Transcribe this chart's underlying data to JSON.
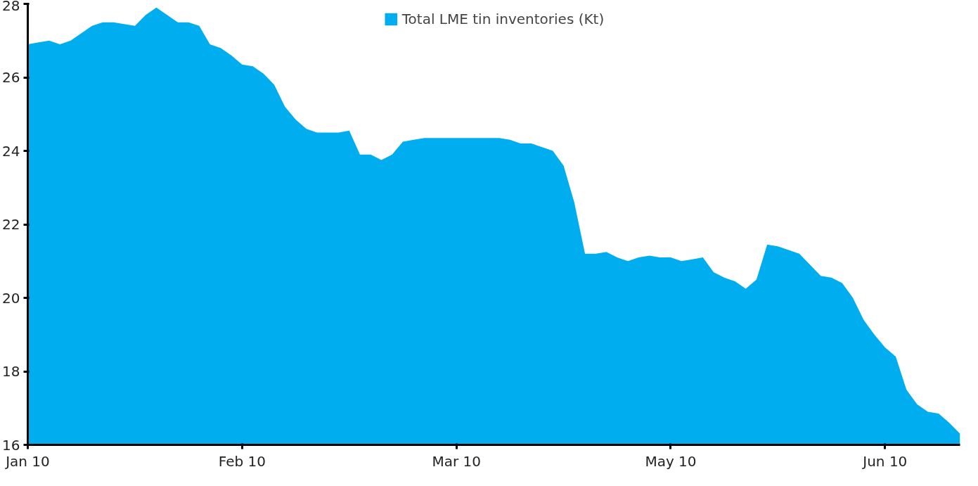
{
  "chart_data": {
    "type": "area",
    "ylim": [
      16,
      28
    ],
    "yticks": [
      16,
      18,
      20,
      22,
      24,
      26,
      28
    ],
    "grid": false,
    "legend": "top",
    "categories": [
      "Jan 10",
      null,
      null,
      null,
      null,
      null,
      null,
      null,
      null,
      null,
      null,
      null,
      null,
      null,
      null,
      null,
      null,
      null,
      null,
      null,
      "Feb 10",
      null,
      null,
      null,
      null,
      null,
      null,
      null,
      null,
      null,
      null,
      null,
      null,
      null,
      null,
      null,
      null,
      null,
      null,
      null,
      "Mar 10",
      null,
      null,
      null,
      null,
      null,
      null,
      null,
      null,
      null,
      null,
      null,
      null,
      null,
      null,
      null,
      null,
      null,
      null,
      null,
      "May 10",
      null,
      null,
      null,
      null,
      null,
      null,
      null,
      null,
      null,
      null,
      null,
      null,
      null,
      null,
      null,
      null,
      null,
      null,
      null,
      "Jun 10",
      null,
      null,
      null,
      null,
      null,
      null,
      null
    ],
    "series": [
      {
        "name": "Total LME tin inventories (Kt)",
        "color": "#00aeef",
        "values": [
          26.9,
          26.95,
          27.0,
          26.9,
          27.0,
          27.2,
          27.4,
          27.5,
          27.5,
          27.45,
          27.4,
          27.7,
          27.9,
          27.7,
          27.5,
          27.5,
          27.4,
          26.9,
          26.8,
          26.6,
          26.35,
          26.3,
          26.1,
          25.8,
          25.2,
          24.85,
          24.6,
          24.5,
          24.5,
          24.5,
          24.55,
          23.9,
          23.9,
          23.75,
          23.9,
          24.25,
          24.3,
          24.35,
          24.35,
          24.35,
          24.35,
          24.35,
          24.35,
          24.35,
          24.35,
          24.3,
          24.2,
          24.2,
          24.1,
          24.0,
          23.6,
          22.6,
          21.2,
          21.2,
          21.25,
          21.1,
          21.0,
          21.1,
          21.15,
          21.1,
          21.1,
          21.0,
          21.05,
          21.1,
          20.7,
          20.55,
          20.45,
          20.25,
          20.5,
          21.45,
          21.4,
          21.3,
          21.2,
          20.9,
          20.6,
          20.55,
          20.4,
          20.0,
          19.4,
          19.0,
          18.65,
          18.4,
          17.5,
          17.1,
          16.9,
          16.85,
          16.6,
          16.3
        ]
      }
    ]
  }
}
